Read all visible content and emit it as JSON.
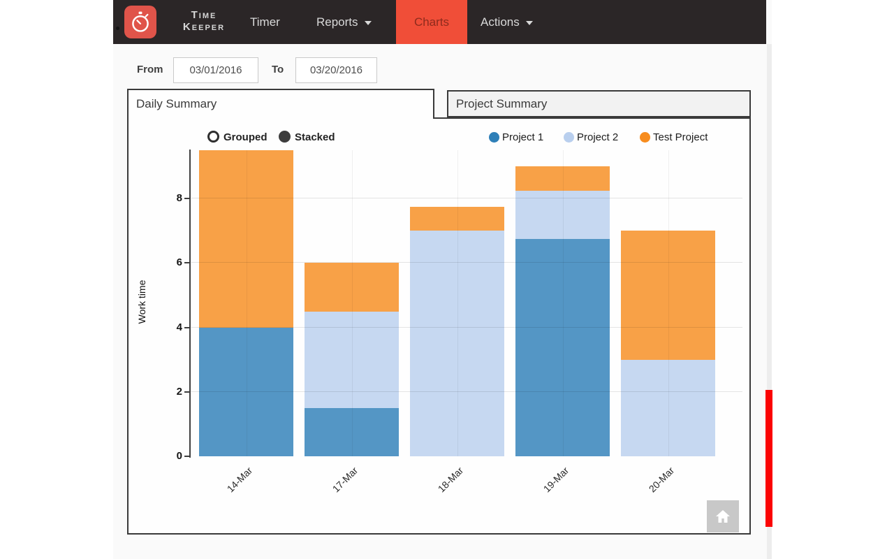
{
  "header": {
    "brand": {
      "line1": "Time",
      "line2": "Keeper"
    },
    "nav": [
      {
        "label": "Timer",
        "active": false,
        "dropdown": false
      },
      {
        "label": "Reports",
        "active": false,
        "dropdown": true
      },
      {
        "label": "Charts",
        "active": true,
        "dropdown": false
      },
      {
        "label": "Actions",
        "active": false,
        "dropdown": true
      }
    ]
  },
  "filters": {
    "from_label": "From",
    "from_value": "03/01/2016",
    "to_label": "To",
    "to_value": "03/20/2016"
  },
  "tabs": [
    {
      "label": "Daily Summary",
      "active": true
    },
    {
      "label": "Project Summary",
      "active": false
    }
  ],
  "chart_controls": [
    {
      "label": "Grouped",
      "selected": false
    },
    {
      "label": "Stacked",
      "selected": true
    }
  ],
  "chart_data": {
    "type": "bar",
    "stacked": true,
    "categories": [
      "14-Mar",
      "17-Mar",
      "18-Mar",
      "19-Mar",
      "20-Mar"
    ],
    "series": [
      {
        "name": "Project 1",
        "color": "#2e7fb8",
        "values": [
          4,
          1.5,
          0,
          6.75,
          0
        ]
      },
      {
        "name": "Project 2",
        "color": "#b9cfee",
        "values": [
          0,
          3,
          7,
          1.5,
          3
        ]
      },
      {
        "name": "Test Project",
        "color": "#f78c1e",
        "values": [
          5.5,
          1.5,
          0.75,
          0.75,
          4
        ]
      }
    ],
    "totals": [
      9.5,
      6,
      7.75,
      9,
      7
    ],
    "xlabel": "",
    "ylabel": "Work time",
    "yticks": [
      0,
      2,
      4,
      6,
      8
    ],
    "ylim": [
      0,
      9.5
    ],
    "grid": true,
    "legend_position": "top-right"
  },
  "colors": {
    "header_bg": "#2b2627",
    "accent_red": "#f04e38",
    "active_nav_text": "#8e2b1d",
    "logo_bg": "#e0544a",
    "panel_border": "#3a3a3a",
    "scroll_thumb_red": "#fb0404",
    "home_button_bg": "#c8c8c8"
  },
  "icons": {
    "home": "home-icon",
    "stopwatch": "stopwatch-icon",
    "chevron": "chevron-down-icon"
  }
}
